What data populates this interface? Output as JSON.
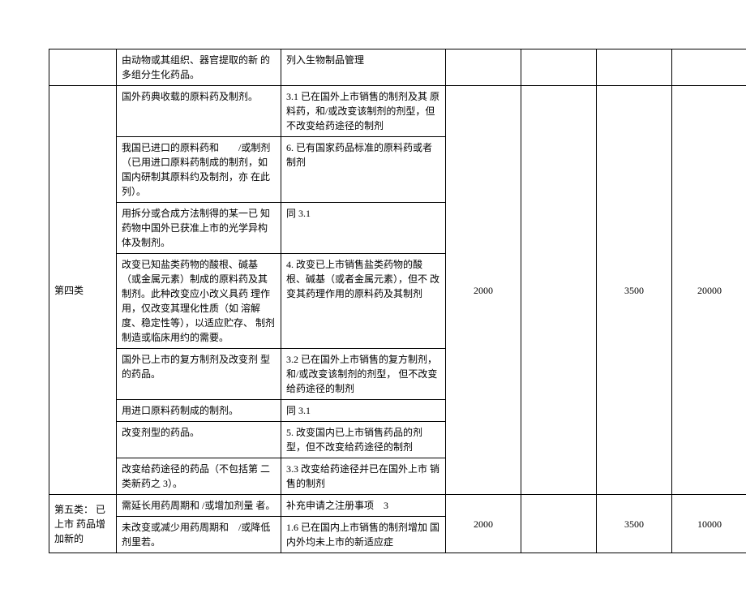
{
  "table": {
    "row0": {
      "col2": "由动物或其组织、器官提取的新 的多组分生化药品。",
      "col3": "列入生物制品管理"
    },
    "category4": {
      "label": "第四类",
      "r1c2": "国外药典收载的原料药及制剂。",
      "r1c3": "3.1 已在国外上市销售的制剂及其 原料药，和/或改变该制剂的剂型，但不改变给药途径的制剂",
      "r2c2": "我国已进口的原料药和　　/或制剂（已用进口原料药制成的制剂，如国内研制其原料约及制剂，亦 在此列）。",
      "r2c3": "6. 已有国家药品标准的原料药或者 制剂",
      "r3c2": "用拆分或合成方法制得的某一已 知药物中国外已获准上市的光学异构体及制剂。",
      "r3c3": "同 3.1",
      "r4c2": "改变已知盐类药物的酸根、碱基 （或金属元素）制成的原料药及其制剂。此种改变应小改义具药 理作用，仅改变其理化性质（如 溶解度、稳定性等），以适应贮存、 制剂制造或临床用约的需要。",
      "r4c3": "4. 改变已上市销售盐类药物的酸根、碱基（或者金属元素），但不 改变其药理作用的原料药及其制剂",
      "r5c2": "国外已上市的复方制剂及改变剂 型的药品。",
      "r5c3": "3.2 已在国外上市销售的复方制剂，和/或改变该制剂的剂型， 但不改变给药途径的制剂",
      "r6c2": "用进口原料药制成的制剂。",
      "r6c3": "同 3.1",
      "r7c2": "改变剂型的药品。",
      "r7c3": "5. 改变国内已上市销售药品的剂 型，但不改变给药途径的制剂",
      "r8c2": "改变给药途径的药品（不包括第 二类新药之 3）。",
      "r8c3": "3.3 改变给药途径并已在国外上市 销售的制剂",
      "val4": "2000",
      "val5": "",
      "val6": "3500",
      "val7": "20000"
    },
    "category5": {
      "label": "第五类： 已上市 药品增加新的",
      "r1c2": "需延长用药周期和 /或增加剂量 者。",
      "r1c3": "补充申请之注册事项　3",
      "r2c2": "未改变或减少用药周期和　/或降低剂里若。",
      "r2c3": "1.6 已在国内上市销售的制剂增加 国内外均未上市的新适应症",
      "val4": "2000",
      "val5": "",
      "val6": "3500",
      "val7": "10000"
    }
  }
}
